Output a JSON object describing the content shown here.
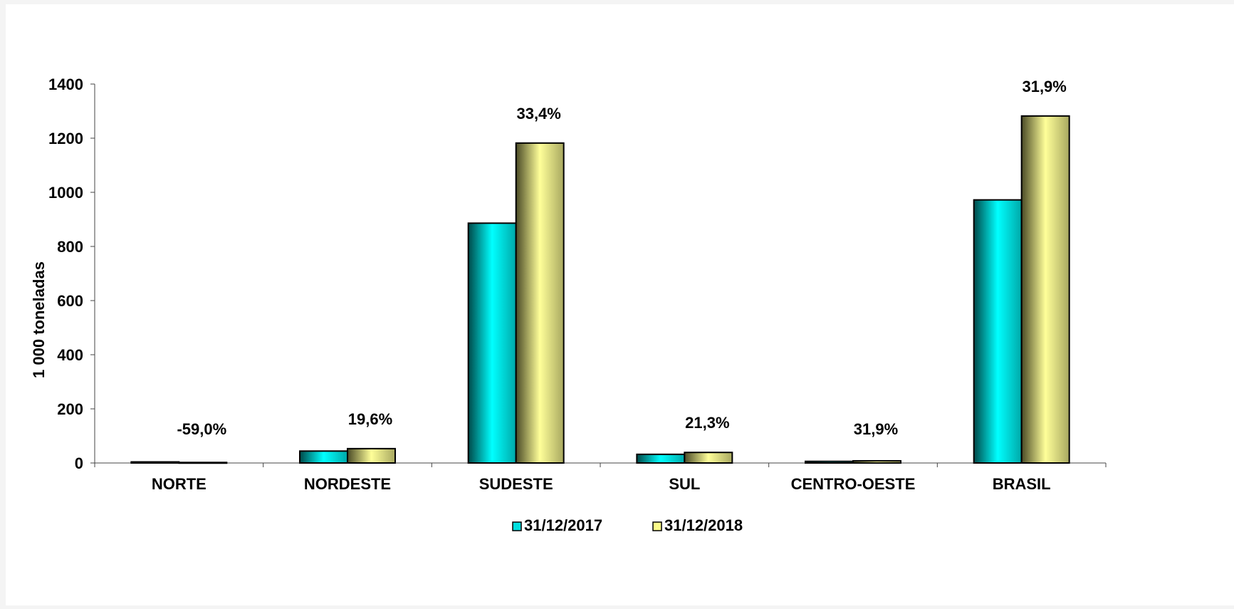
{
  "chart_data": {
    "type": "bar",
    "ylabel": "1 000 toneladas",
    "ylim": [
      0,
      1400
    ],
    "yticks": [
      0,
      200,
      400,
      600,
      800,
      1000,
      1200,
      1400
    ],
    "categories": [
      "NORTE",
      "NORDESTE",
      "SUDESTE",
      "SUL",
      "CENTRO-OESTE",
      "BRASIL"
    ],
    "series": [
      {
        "name": "31/12/2017",
        "color": "#00e0e0",
        "values": [
          4,
          44,
          886,
          32,
          6,
          972
        ]
      },
      {
        "name": "31/12/2018",
        "color": "#fbfb88",
        "values": [
          2,
          53,
          1182,
          39,
          8,
          1282
        ]
      }
    ],
    "annotations": [
      "-59,0%",
      "19,6%",
      "33,4%",
      "21,3%",
      "31,9%",
      "31,9%"
    ],
    "grid": false,
    "legend": "bottom-center"
  }
}
